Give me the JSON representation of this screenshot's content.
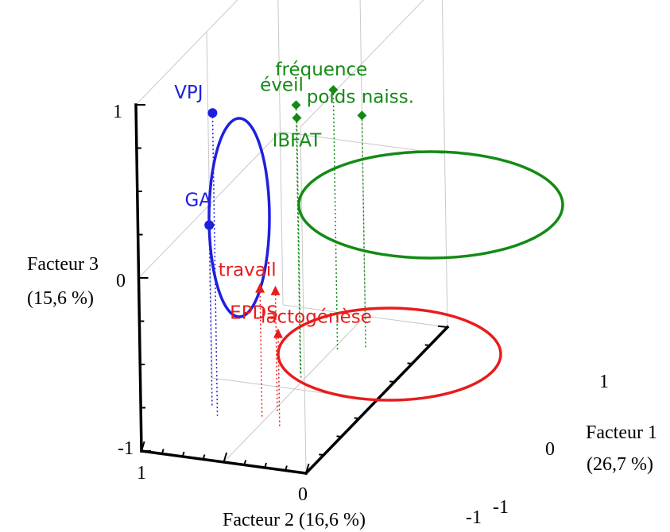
{
  "chart_data": {
    "type": "scatter",
    "projection": "3d",
    "axes": {
      "x": {
        "label": "Facteur 1",
        "pct": "(26,7 %)",
        "ticks": [
          "1",
          "0",
          "-1"
        ],
        "range": [
          -1,
          1
        ]
      },
      "y": {
        "label": "Facteur 2 (16,6 %)",
        "ticks": [
          "1",
          "0",
          "-1"
        ],
        "range": [
          -1,
          1
        ]
      },
      "z": {
        "label": "Facteur 3",
        "pct": "(15,6 %)",
        "ticks": [
          "1",
          "0",
          "-1"
        ],
        "range": [
          -1,
          1
        ]
      }
    },
    "groups": [
      {
        "color": "#1f1fe0",
        "marker": "circle",
        "points": [
          {
            "label": "VPJ",
            "factor1": -0.45,
            "factor2": 0.55,
            "factor3": 0.75
          },
          {
            "label": "GA",
            "factor1": -0.35,
            "factor2": 0.7,
            "factor3": 0.05
          }
        ]
      },
      {
        "color": "#148a14",
        "marker": "diamond",
        "points": [
          {
            "label": "éveil",
            "factor1": 0.2,
            "factor2": 0.1,
            "factor3": 0.55
          },
          {
            "label": "IBFAT",
            "factor1": 0.15,
            "factor2": 0.05,
            "factor3": 0.5
          },
          {
            "label": "fréquence",
            "factor1": 0.55,
            "factor2": -0.05,
            "factor3": 0.5
          },
          {
            "label": "poids naiss.",
            "factor1": 0.6,
            "factor2": -0.35,
            "factor3": 0.35
          }
        ]
      },
      {
        "color": "#e81c1c",
        "marker": "triangle",
        "points": [
          {
            "label": "travail",
            "factor1": -0.4,
            "factor2": 0.05,
            "factor3": -0.25
          },
          {
            "label": "EPDS",
            "factor1": -0.3,
            "factor2": -0.05,
            "factor3": -0.3
          },
          {
            "label": "lactogénèse",
            "factor1": -0.5,
            "factor2": -0.25,
            "factor3": -0.45
          }
        ]
      }
    ],
    "grid": true
  }
}
